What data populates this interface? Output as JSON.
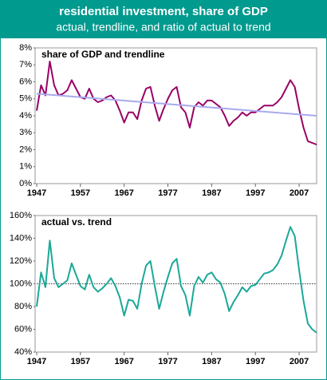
{
  "title": "residential investment, share of GDP",
  "subtitle": "actual, trendline, and ratio of actual to trend",
  "chart_data": [
    {
      "type": "line",
      "title": "share of GDP and trendline",
      "xlim": [
        1947,
        2011
      ],
      "xticks": [
        1947,
        1957,
        1967,
        1977,
        1987,
        1997,
        2007
      ],
      "ylim": [
        0,
        8
      ],
      "yticks": [
        {
          "value": 0,
          "label": "0%"
        },
        {
          "value": 1,
          "label": "1%"
        },
        {
          "value": 2,
          "label": "2%"
        },
        {
          "value": 3,
          "label": "3%"
        },
        {
          "value": 4,
          "label": "4%"
        },
        {
          "value": 5,
          "label": "5%"
        },
        {
          "value": 6,
          "label": "6%"
        },
        {
          "value": 7,
          "label": "7%"
        },
        {
          "value": 8,
          "label": "8%"
        }
      ],
      "series": [
        {
          "color": "#990066",
          "x": [
            1947,
            1948,
            1949,
            1950,
            1951,
            1952,
            1953,
            1954,
            1955,
            1956,
            1957,
            1958,
            1959,
            1960,
            1961,
            1962,
            1963,
            1964,
            1965,
            1966,
            1967,
            1968,
            1969,
            1970,
            1971,
            1972,
            1973,
            1974,
            1975,
            1976,
            1977,
            1978,
            1979,
            1980,
            1981,
            1982,
            1983,
            1984,
            1985,
            1986,
            1987,
            1988,
            1989,
            1990,
            1991,
            1992,
            1993,
            1994,
            1995,
            1996,
            1997,
            1998,
            1999,
            2000,
            2001,
            2002,
            2003,
            2004,
            2005,
            2006,
            2007,
            2008,
            2009,
            2010,
            2011
          ],
          "values": [
            4.3,
            5.8,
            5.2,
            7.2,
            5.8,
            5.2,
            5.3,
            5.5,
            6.1,
            5.6,
            5.1,
            5.0,
            5.6,
            5.0,
            4.8,
            4.9,
            5.1,
            5.2,
            4.9,
            4.3,
            3.6,
            4.2,
            4.2,
            3.8,
            4.9,
            5.6,
            5.7,
            4.6,
            3.7,
            4.4,
            5.0,
            5.5,
            5.7,
            4.5,
            4.2,
            3.3,
            4.5,
            4.8,
            4.6,
            4.9,
            4.9,
            4.7,
            4.5,
            4.0,
            3.4,
            3.7,
            3.9,
            4.2,
            4.0,
            4.2,
            4.2,
            4.4,
            4.6,
            4.6,
            4.6,
            4.8,
            5.1,
            5.6,
            6.1,
            5.7,
            4.4,
            3.3,
            2.5,
            2.4,
            2.3
          ]
        },
        {
          "color": "#a9a9ee",
          "x": [
            1947,
            2011
          ],
          "values": [
            5.3,
            4.0
          ]
        }
      ]
    },
    {
      "type": "line",
      "title": "actual vs. trend",
      "xlim": [
        1947,
        2011
      ],
      "xticks": [
        1947,
        1957,
        1967,
        1977,
        1987,
        1997,
        2007
      ],
      "ylim": [
        40,
        160
      ],
      "yticks": [
        {
          "value": 40,
          "label": "40%"
        },
        {
          "value": 60,
          "label": "60%"
        },
        {
          "value": 80,
          "label": "80%"
        },
        {
          "value": 100,
          "label": "100%"
        },
        {
          "value": 120,
          "label": "120%"
        },
        {
          "value": 140,
          "label": "140%"
        },
        {
          "value": 160,
          "label": "160%"
        }
      ],
      "hline": 100,
      "series": [
        {
          "color": "#1aa898",
          "x": [
            1947,
            1948,
            1949,
            1950,
            1951,
            1952,
            1953,
            1954,
            1955,
            1956,
            1957,
            1958,
            1959,
            1960,
            1961,
            1962,
            1963,
            1964,
            1965,
            1966,
            1967,
            1968,
            1969,
            1970,
            1971,
            1972,
            1973,
            1974,
            1975,
            1976,
            1977,
            1978,
            1979,
            1980,
            1981,
            1982,
            1983,
            1984,
            1985,
            1986,
            1987,
            1988,
            1989,
            1990,
            1991,
            1992,
            1993,
            1994,
            1995,
            1996,
            1997,
            1998,
            1999,
            2000,
            2001,
            2002,
            2003,
            2004,
            2005,
            2006,
            2007,
            2008,
            2009,
            2010,
            2011
          ],
          "values": [
            80,
            110,
            97,
            138,
            105,
            97,
            100,
            103,
            118,
            108,
            98,
            95,
            108,
            97,
            93,
            96,
            100,
            105,
            98,
            88,
            72,
            86,
            85,
            78,
            100,
            116,
            120,
            98,
            78,
            93,
            106,
            118,
            122,
            98,
            90,
            72,
            98,
            106,
            101,
            108,
            110,
            104,
            101,
            91,
            76,
            84,
            90,
            97,
            93,
            98,
            99,
            104,
            109,
            110,
            112,
            117,
            125,
            138,
            150,
            142,
            112,
            85,
            65,
            60,
            57
          ]
        }
      ]
    }
  ]
}
